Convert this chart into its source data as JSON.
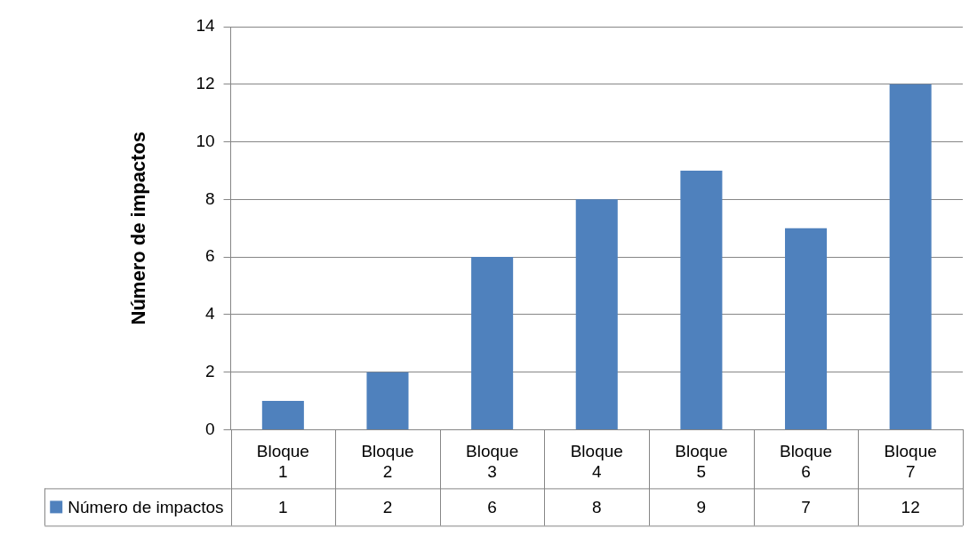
{
  "chart_data": {
    "type": "bar",
    "ylabel": "Número de impactos",
    "categories": [
      "Bloque 1",
      "Bloque 2",
      "Bloque 3",
      "Bloque 4",
      "Bloque 5",
      "Bloque 6",
      "Bloque 7"
    ],
    "series": [
      {
        "name": "Número de impactos",
        "color": "#4f81bd",
        "values": [
          1,
          2,
          6,
          8,
          9,
          7,
          12
        ]
      }
    ],
    "ylim": [
      0,
      14
    ],
    "yticks": [
      0,
      2,
      4,
      6,
      8,
      10,
      12,
      14
    ],
    "grid": "y",
    "legend": "bottom",
    "data_labels": true
  }
}
